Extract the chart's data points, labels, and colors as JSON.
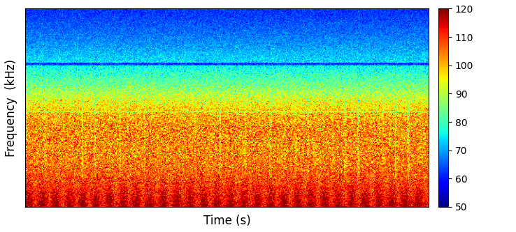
{
  "title": "",
  "xlabel": "Time (s)",
  "ylabel": "Frequency  (kHz)",
  "clim_min": 50,
  "clim_max": 120,
  "colorbar_ticks": [
    50,
    60,
    70,
    80,
    90,
    100,
    110,
    120
  ],
  "img_shape": [
    300,
    600
  ],
  "background_color": "#ffffff",
  "cmap": "jet",
  "noise_seed": 42
}
